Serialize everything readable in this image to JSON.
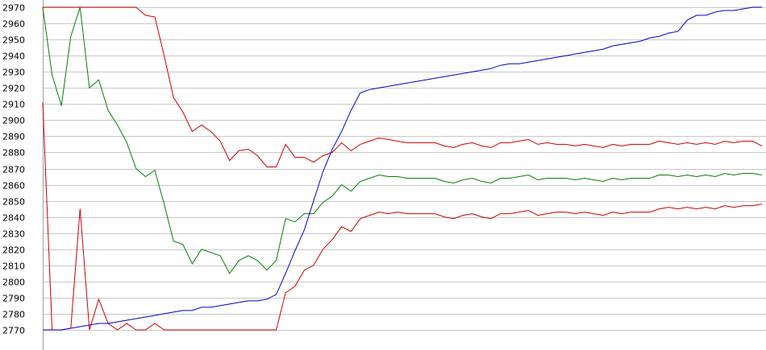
{
  "chart_data": {
    "type": "line",
    "title": "",
    "xlabel": "",
    "ylabel": "",
    "ylim": [
      2770,
      2970
    ],
    "y_ticks": [
      2970,
      2960,
      2950,
      2940,
      2930,
      2920,
      2910,
      2900,
      2890,
      2880,
      2870,
      2860,
      2850,
      2840,
      2830,
      2820,
      2810,
      2800,
      2790,
      2780,
      2770
    ],
    "grid": "horizontal",
    "legend": "none",
    "x": [
      0,
      1,
      2,
      3,
      4,
      5,
      6,
      7,
      8,
      9,
      10,
      11,
      12,
      13,
      14,
      15,
      16,
      17,
      18,
      19,
      20,
      21,
      22,
      23,
      24,
      25,
      26,
      27,
      28,
      29,
      30,
      31,
      32,
      33,
      34,
      35,
      36,
      37,
      38,
      39,
      40,
      41,
      42,
      43,
      44,
      45,
      46,
      47,
      48,
      49,
      50,
      51,
      52,
      53,
      54,
      55,
      56,
      57,
      58,
      59,
      60,
      61,
      62,
      63,
      64,
      65,
      66,
      67,
      68,
      69,
      70,
      71,
      72,
      73,
      74,
      75,
      76,
      77
    ],
    "series": [
      {
        "color": "#cc0000",
        "values": [
          2970,
          2970,
          2970,
          2970,
          2970,
          2970,
          2970,
          2970,
          2970,
          2970,
          2970,
          2965,
          2964,
          2940,
          2914,
          2905,
          2893,
          2897,
          2893,
          2887,
          2875,
          2881,
          2882,
          2878,
          2871,
          2871,
          2885,
          2877,
          2877,
          2874,
          2878,
          2880,
          2886,
          2881,
          2885,
          2887,
          2889,
          2888,
          2887,
          2886,
          2886,
          2886,
          2886,
          2884,
          2883,
          2885,
          2886,
          2884,
          2883,
          2886,
          2886,
          2887,
          2888,
          2885,
          2886,
          2885,
          2885,
          2884,
          2885,
          2884,
          2883,
          2885,
          2884,
          2885,
          2885,
          2885,
          2887,
          2886,
          2885,
          2886,
          2885,
          2886,
          2885,
          2887,
          2886,
          2887,
          2887,
          2884
        ]
      },
      {
        "color": "#008000",
        "values": [
          2970,
          2928,
          2909,
          2952,
          2970,
          2920,
          2925,
          2906,
          2897,
          2886,
          2870,
          2865,
          2869,
          2848,
          2825,
          2823,
          2811,
          2820,
          2818,
          2816,
          2805,
          2813,
          2816,
          2813,
          2807,
          2813,
          2839,
          2837,
          2842,
          2842,
          2849,
          2853,
          2860,
          2856,
          2862,
          2864,
          2866,
          2865,
          2865,
          2864,
          2864,
          2864,
          2864,
          2862,
          2861,
          2863,
          2864,
          2862,
          2861,
          2864,
          2864,
          2865,
          2866,
          2863,
          2864,
          2864,
          2864,
          2863,
          2864,
          2863,
          2862,
          2864,
          2863,
          2864,
          2864,
          2864,
          2866,
          2866,
          2865,
          2866,
          2865,
          2866,
          2865,
          2867,
          2866,
          2867,
          2867,
          2866
        ]
      },
      {
        "color": "#cc0000",
        "values": [
          2911,
          2770,
          2770,
          2771,
          2845,
          2770,
          2789,
          2774,
          2770,
          2774,
          2770,
          2770,
          2774,
          2770,
          2770,
          2770,
          2770,
          2770,
          2770,
          2770,
          2770,
          2770,
          2770,
          2770,
          2770,
          2770,
          2793,
          2797,
          2807,
          2810,
          2820,
          2826,
          2834,
          2831,
          2839,
          2841,
          2843,
          2842,
          2843,
          2842,
          2842,
          2842,
          2842,
          2840,
          2839,
          2841,
          2842,
          2840,
          2839,
          2842,
          2842,
          2843,
          2844,
          2841,
          2842,
          2843,
          2843,
          2842,
          2843,
          2842,
          2841,
          2843,
          2842,
          2843,
          2843,
          2843,
          2845,
          2846,
          2845,
          2846,
          2845,
          2846,
          2845,
          2847,
          2846,
          2847,
          2847,
          2848
        ]
      },
      {
        "color": "#0000cc",
        "values": [
          2770,
          2770,
          2770,
          2771,
          2772,
          2773,
          2774,
          2774,
          2775,
          2776,
          2777,
          2778,
          2779,
          2780,
          2781,
          2782,
          2782,
          2784,
          2784,
          2785,
          2786,
          2787,
          2788,
          2788,
          2789,
          2792,
          2805,
          2819,
          2832,
          2850,
          2868,
          2882,
          2893,
          2906,
          2917,
          2919,
          2920,
          2921,
          2922,
          2923,
          2924,
          2925,
          2926,
          2927,
          2928,
          2929,
          2930,
          2931,
          2932,
          2934,
          2935,
          2935,
          2936,
          2937,
          2938,
          2939,
          2940,
          2941,
          2942,
          2943,
          2944,
          2946,
          2947,
          2948,
          2949,
          2951,
          2952,
          2954,
          2955,
          2962,
          2965,
          2965,
          2967,
          2968,
          2968,
          2969,
          2970,
          2970
        ]
      }
    ]
  }
}
